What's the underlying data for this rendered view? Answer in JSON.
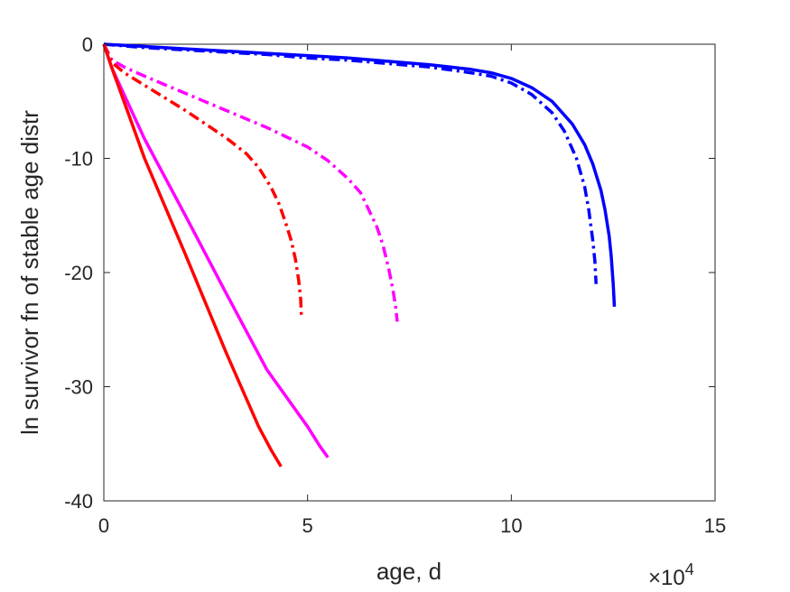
{
  "chart_data": {
    "type": "line",
    "title": "",
    "xlabel": "age, d",
    "ylabel": "ln survivor fn of stable age distr",
    "x_exponent_label": {
      "base": "×10",
      "exp": "4"
    },
    "xlim": [
      0,
      150000
    ],
    "ylim": [
      -40,
      0
    ],
    "x_ticks": [
      0,
      50000,
      100000,
      150000
    ],
    "x_tick_labels": [
      "0",
      "5",
      "10",
      "15"
    ],
    "y_ticks": [
      0,
      -10,
      -20,
      -30,
      -40
    ],
    "y_tick_labels": [
      "0",
      "-10",
      "-20",
      "-30",
      "-40"
    ],
    "grid": false,
    "colors": {
      "blue": "#0000ff",
      "magenta": "#ff00ff",
      "red": "#ff0000",
      "axis": "#262626"
    },
    "series": [
      {
        "color": "#0000ff",
        "style": "solid",
        "x": [
          0,
          10000,
          20000,
          30000,
          40000,
          50000,
          60000,
          70000,
          80000,
          90000,
          95000,
          100000,
          105000,
          110000,
          115000,
          118000,
          120000,
          122000,
          123000,
          124000,
          124500,
          125000,
          125300
        ],
        "y": [
          0,
          -0.2,
          -0.4,
          -0.6,
          -0.8,
          -1.0,
          -1.2,
          -1.5,
          -1.8,
          -2.2,
          -2.5,
          -3.0,
          -3.8,
          -5.0,
          -7.0,
          -8.8,
          -10.5,
          -12.8,
          -14.5,
          -16.8,
          -18.5,
          -21.0,
          -23.0
        ]
      },
      {
        "color": "#0000ff",
        "style": "dashdot",
        "x": [
          0,
          10000,
          20000,
          30000,
          40000,
          50000,
          60000,
          70000,
          80000,
          90000,
          95000,
          100000,
          105000,
          110000,
          113000,
          116000,
          118000,
          119000,
          120000,
          120500,
          120800
        ],
        "y": [
          0,
          -0.3,
          -0.5,
          -0.7,
          -0.9,
          -1.2,
          -1.4,
          -1.7,
          -2.0,
          -2.5,
          -2.8,
          -3.4,
          -4.4,
          -6.0,
          -7.6,
          -10.0,
          -12.5,
          -14.5,
          -17.2,
          -19.0,
          -21.0
        ]
      },
      {
        "color": "#ff00ff",
        "style": "dashdot",
        "x": [
          0,
          2000,
          5000,
          10000,
          20000,
          30000,
          40000,
          50000,
          55000,
          60000,
          63000,
          65000,
          67000,
          68500,
          70000,
          71000,
          71600,
          72000
        ],
        "y": [
          0,
          -1.4,
          -2.0,
          -2.8,
          -4.3,
          -5.8,
          -7.3,
          -9.0,
          -10.2,
          -11.8,
          -13.0,
          -14.5,
          -16.0,
          -17.6,
          -19.8,
          -21.6,
          -23.0,
          -24.3
        ]
      },
      {
        "color": "#ff0000",
        "style": "dashdot",
        "x": [
          0,
          2000,
          5000,
          10000,
          20000,
          30000,
          35000,
          38000,
          41000,
          43000,
          44500,
          46000,
          47000,
          47800,
          48300,
          48500
        ],
        "y": [
          0,
          -1.6,
          -2.5,
          -3.6,
          -5.8,
          -8.2,
          -9.6,
          -10.8,
          -12.5,
          -14.0,
          -15.5,
          -17.2,
          -18.8,
          -20.6,
          -22.3,
          -24.0
        ]
      },
      {
        "color": "#ff00ff",
        "style": "solid",
        "x": [
          0,
          2000,
          10000,
          20000,
          30000,
          40000,
          50000,
          53000,
          55000
        ],
        "y": [
          0,
          -2.1,
          -8.3,
          -15.0,
          -21.8,
          -28.5,
          -33.5,
          -35.2,
          -36.2
        ]
      },
      {
        "color": "#ff0000",
        "style": "solid",
        "x": [
          0,
          2000,
          10000,
          20000,
          30000,
          38000,
          41000,
          42500,
          43500
        ],
        "y": [
          0,
          -2.1,
          -10.0,
          -18.4,
          -27.0,
          -33.5,
          -35.5,
          -36.4,
          -37.0
        ]
      }
    ]
  }
}
